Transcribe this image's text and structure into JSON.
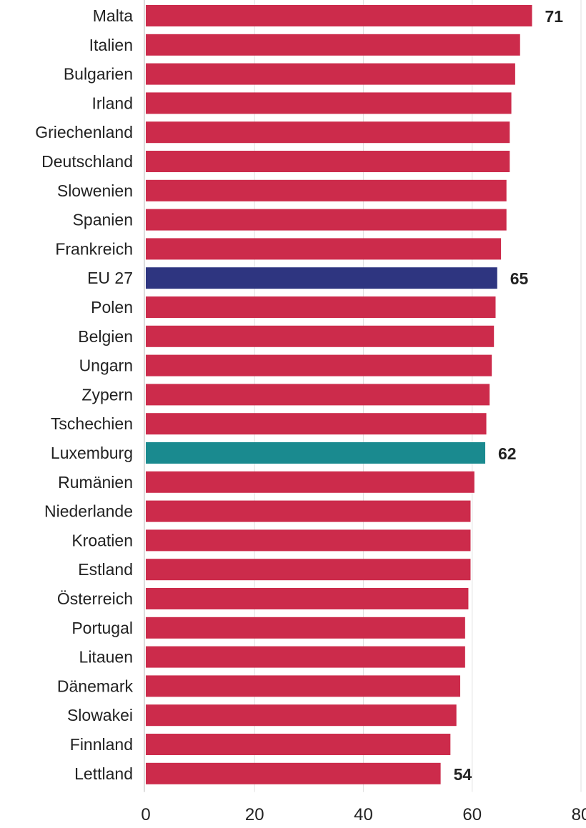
{
  "chart_data": {
    "type": "bar",
    "orientation": "horizontal",
    "title": "",
    "xlabel": "",
    "ylabel": "",
    "xlim": [
      0,
      80
    ],
    "xticks": [
      0,
      20,
      40,
      60,
      80
    ],
    "grid": true,
    "categories": [
      "Malta",
      "Italien",
      "Bulgarien",
      "Irland",
      "Griechenland",
      "Deutschland",
      "Slowenien",
      "Spanien",
      "Frankreich",
      "EU 27",
      "Polen",
      "Belgien",
      "Ungarn",
      "Zypern",
      "Tschechien",
      "Luxemburg",
      "Rumänien",
      "Niederlande",
      "Kroatien",
      "Estland",
      "Österreich",
      "Portugal",
      "Litauen",
      "Dänemark",
      "Slowakei",
      "Finnland",
      "Lettland"
    ],
    "values": [
      71,
      68.8,
      67.9,
      67.2,
      66.9,
      66.9,
      66.3,
      66.3,
      65.3,
      64.6,
      64.3,
      64.0,
      63.6,
      63.2,
      62.6,
      62.4,
      60.4,
      59.7,
      59.7,
      59.7,
      59.3,
      58.7,
      58.7,
      57.8,
      57.1,
      56.0,
      54.2
    ],
    "data_labels": {
      "Malta": "71",
      "EU 27": "65",
      "Luxemburg": "62",
      "Lettland": "54"
    },
    "colors": {
      "default": "#cc2b4b",
      "EU 27": "#2e3580",
      "Luxemburg": "#1a8a8f"
    }
  }
}
